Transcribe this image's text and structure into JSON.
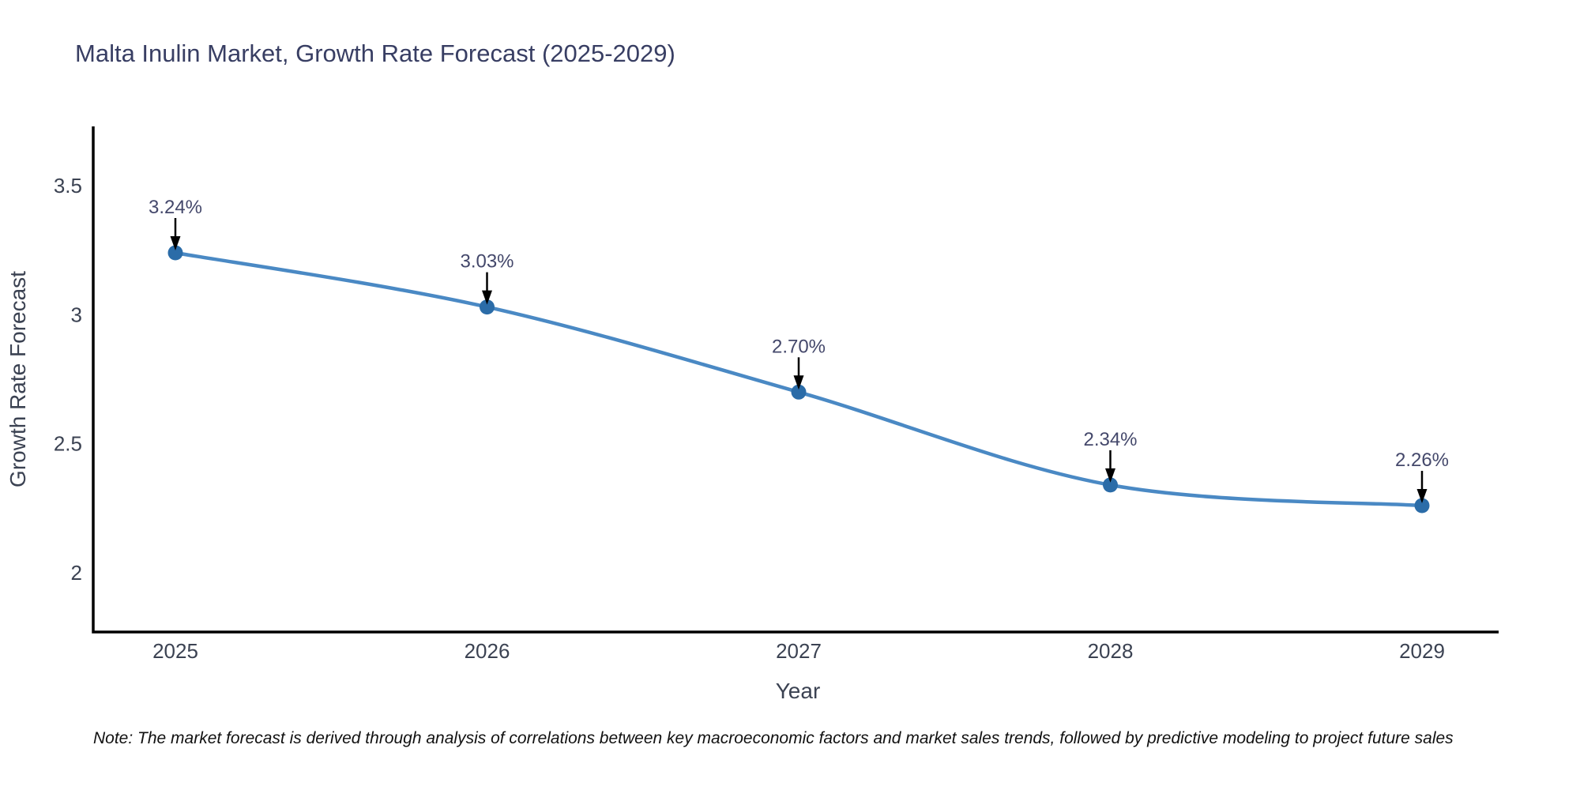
{
  "title": "Malta Inulin Market, Growth Rate Forecast (2025-2029)",
  "note": "Note: The market forecast is derived through analysis of correlations between key macroeconomic factors and market sales trends, followed by predictive modeling to project future sales",
  "chart_data": {
    "type": "line",
    "title": "Malta Inulin Market, Growth Rate Forecast (2025-2029)",
    "xlabel": "Year",
    "ylabel": "Growth Rate Forecast",
    "categories": [
      "2025",
      "2026",
      "2027",
      "2028",
      "2029"
    ],
    "series": [
      {
        "name": "Growth Rate Forecast",
        "values": [
          3.24,
          3.03,
          2.7,
          2.34,
          2.26
        ]
      }
    ],
    "point_labels": [
      "3.24%",
      "3.03%",
      "2.70%",
      "2.34%",
      "2.26%"
    ],
    "yticks": [
      2,
      2.5,
      3,
      3.5
    ],
    "ytick_labels": [
      "2",
      "2.5",
      "3",
      "3.5"
    ],
    "ylim": [
      1.77,
      3.73
    ],
    "line_shape": "spline",
    "grid": false,
    "legend": false,
    "colors": {
      "line": "#4a89c4",
      "marker": "#2b6ca8",
      "arrow": "#000000",
      "axis_line": "#000000",
      "title_text": "#383e63",
      "axis_text": "#3b4252",
      "annotation_text": "#44486b",
      "note_text": "#111111",
      "background": "#ffffff"
    }
  }
}
